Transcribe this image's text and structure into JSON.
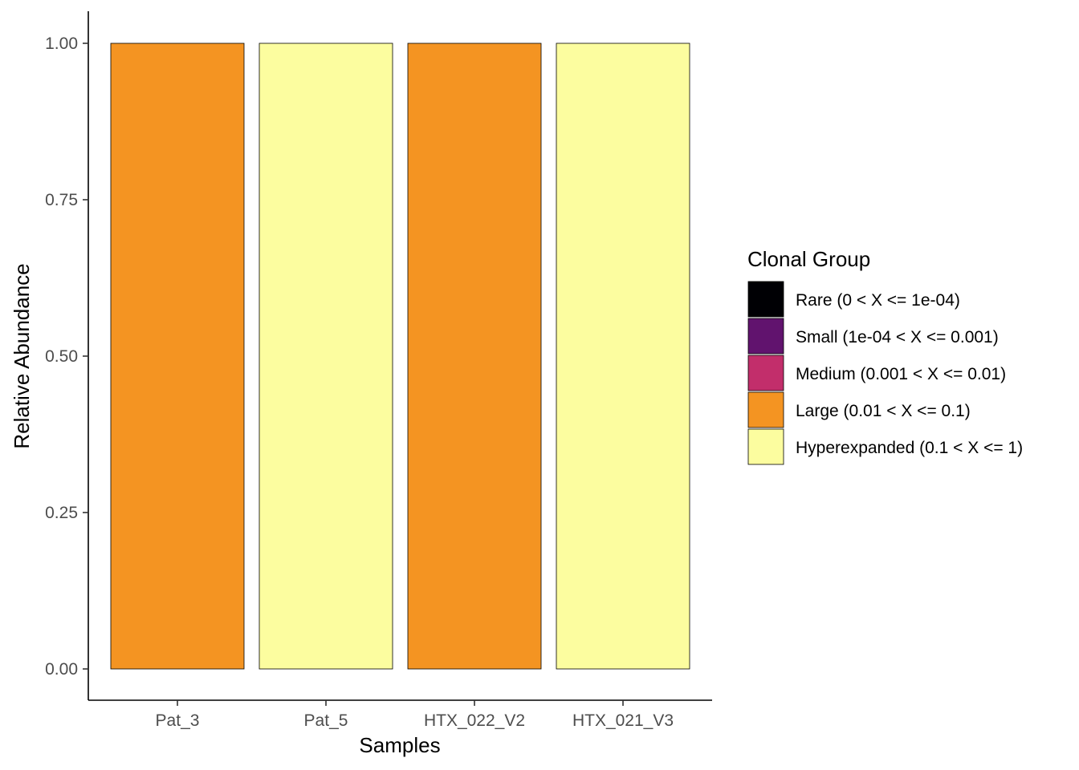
{
  "chart_data": {
    "type": "bar",
    "stacked": true,
    "xlabel": "Samples",
    "ylabel": "Relative Abundance",
    "ylim": [
      0,
      1
    ],
    "yticks": [
      "0.00",
      "0.25",
      "0.50",
      "0.75",
      "1.00"
    ],
    "grid": false,
    "legend_position": "right",
    "categories": [
      "Pat_3",
      "Pat_5",
      "HTX_022_V2",
      "HTX_021_V3"
    ],
    "series": [
      {
        "name": "Rare (0 < X <= 1e-04)",
        "color": "#000004",
        "values": [
          0,
          0,
          0,
          0
        ]
      },
      {
        "name": "Small (1e-04 < X <= 0.001)",
        "color": "#61136E",
        "values": [
          0,
          0,
          0,
          0
        ]
      },
      {
        "name": "Medium (0.001 < X <= 0.01)",
        "color": "#C22E6B",
        "values": [
          0,
          0,
          0,
          0
        ]
      },
      {
        "name": "Large (0.01 < X <= 0.1)",
        "color": "#F49422",
        "values": [
          1,
          0,
          1,
          0
        ]
      },
      {
        "name": "Hyperexpanded (0.1 < X <= 1)",
        "color": "#FCFD9F",
        "values": [
          0,
          1,
          0,
          1
        ]
      }
    ],
    "legend_title": "Clonal Group"
  }
}
